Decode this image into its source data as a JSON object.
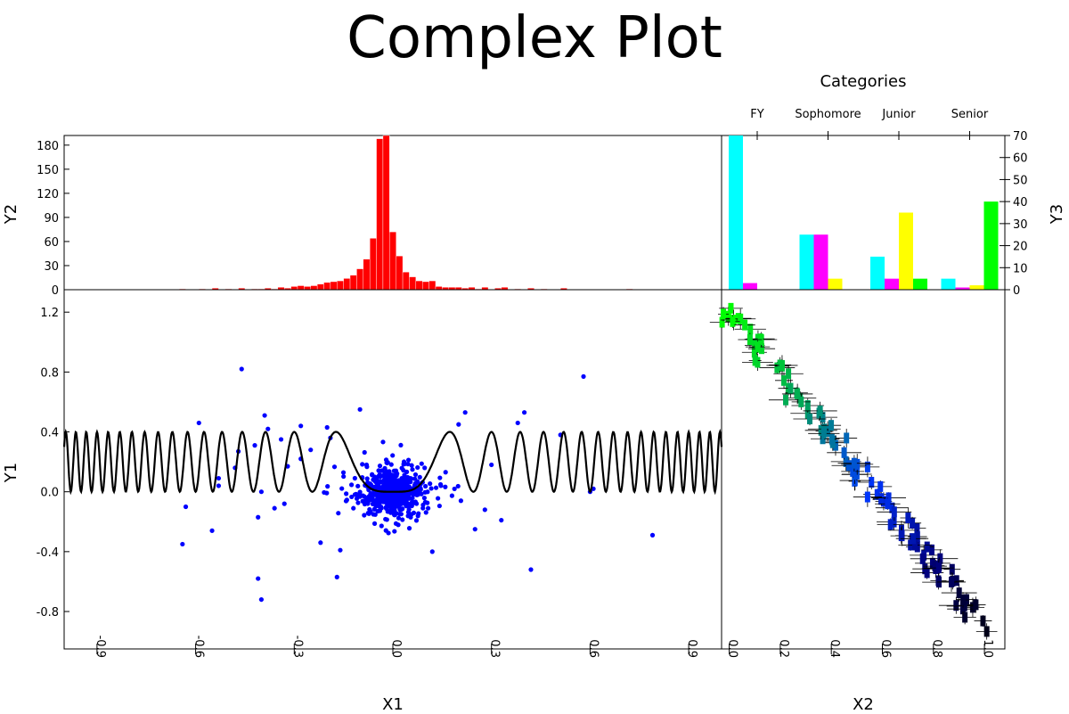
{
  "title": "Complex Plot",
  "chart_data": [
    {
      "id": "histogram",
      "type": "bar",
      "xlabel": "",
      "ylabel": "Y2",
      "ylim": [
        0,
        192
      ],
      "yticks": [
        "0",
        "30",
        "60",
        "90",
        "120",
        "150",
        "180"
      ],
      "bar_color": "#ff0000",
      "bin_width": 0.02,
      "x": [
        -0.9,
        -0.88,
        -0.86,
        -0.84,
        -0.82,
        -0.8,
        -0.78,
        -0.76,
        -0.74,
        -0.72,
        -0.7,
        -0.68,
        -0.66,
        -0.64,
        -0.62,
        -0.6,
        -0.58,
        -0.56,
        -0.54,
        -0.52,
        -0.5,
        -0.48,
        -0.46,
        -0.44,
        -0.42,
        -0.4,
        -0.38,
        -0.36,
        -0.34,
        -0.32,
        -0.3,
        -0.28,
        -0.26,
        -0.24,
        -0.22,
        -0.2,
        -0.18,
        -0.16,
        -0.14,
        -0.12,
        -0.1,
        -0.08,
        -0.06,
        -0.04,
        -0.02,
        0.0,
        0.02,
        0.04,
        0.06,
        0.08,
        0.1,
        0.12,
        0.14,
        0.16,
        0.18,
        0.2,
        0.22,
        0.24,
        0.26,
        0.28,
        0.3,
        0.32,
        0.34,
        0.36,
        0.38,
        0.4,
        0.42,
        0.44,
        0.46,
        0.48,
        0.5,
        0.52,
        0.54,
        0.56,
        0.58,
        0.6,
        0.62,
        0.64,
        0.66,
        0.68,
        0.7,
        0.72,
        0.74,
        0.76,
        0.78,
        0.8,
        0.82,
        0.84,
        0.86,
        0.88,
        0.9
      ],
      "values": [
        0,
        0,
        0,
        0,
        0,
        0,
        0,
        0,
        0,
        0,
        0,
        0,
        0,
        1,
        0,
        0,
        1,
        0,
        2,
        0,
        1,
        0,
        2,
        0,
        1,
        1,
        2,
        1,
        3,
        2,
        4,
        5,
        4,
        5,
        7,
        9,
        10,
        11,
        14,
        18,
        26,
        38,
        64,
        188,
        192,
        72,
        42,
        22,
        16,
        11,
        10,
        11,
        4,
        3,
        3,
        3,
        2,
        3,
        1,
        3,
        0,
        2,
        3,
        0,
        1,
        0,
        2,
        0,
        1,
        0,
        0,
        2,
        0,
        0,
        0,
        0,
        0,
        0,
        0,
        0,
        0,
        1,
        0,
        0,
        0,
        0,
        0,
        0,
        0,
        0,
        0
      ]
    },
    {
      "id": "category-bars",
      "type": "bar",
      "title": "Categories",
      "ylabel": "Y3",
      "ylim": [
        0,
        70
      ],
      "yticks": [
        "0",
        "10",
        "20",
        "30",
        "40",
        "50",
        "60",
        "70"
      ],
      "categories": [
        "FY",
        "Sophomore",
        "Junior",
        "Senior"
      ],
      "series": [
        {
          "color": "#00ffff",
          "values": [
            70,
            25,
            15,
            5
          ]
        },
        {
          "color": "#ff00ff",
          "values": [
            3,
            25,
            5,
            1
          ]
        },
        {
          "color": "#ffff00",
          "values": [
            0,
            5,
            35,
            2
          ]
        },
        {
          "color": "#00ff00",
          "values": [
            0,
            0,
            5,
            40
          ]
        }
      ]
    },
    {
      "id": "scatter-main",
      "type": "scatter",
      "xlabel": "X1",
      "ylabel": "Y1",
      "xlim": [
        -1.0,
        1.0
      ],
      "ylim": [
        -1.05,
        1.35
      ],
      "xticks": [
        "-0.9",
        "-0.6",
        "-0.3",
        "0.0",
        "0.3",
        "0.6",
        "0.9"
      ],
      "yticks": [
        "-0.8",
        "-0.4",
        "0.0",
        "0.4",
        "0.8",
        "1.2"
      ],
      "point_color": "#0000ff",
      "curve": {
        "color": "#000000",
        "amplitude": 0.4,
        "description": "0.2 - 0.2*cos(2*pi*x^2 / 0.06)"
      },
      "points": [
        [
          -0.64,
          -0.35
        ],
        [
          -0.63,
          -0.1
        ],
        [
          -0.59,
          0.46
        ],
        [
          -0.55,
          -0.26
        ],
        [
          -0.53,
          0.09
        ],
        [
          -0.53,
          0.04
        ],
        [
          -0.48,
          0.16
        ],
        [
          -0.47,
          0.27
        ],
        [
          -0.46,
          0.82
        ],
        [
          -0.42,
          0.31
        ],
        [
          -0.41,
          -0.17
        ],
        [
          -0.39,
          0.51
        ],
        [
          -0.38,
          0.42
        ],
        [
          -0.4,
          0.0
        ],
        [
          -0.36,
          -0.11
        ],
        [
          -0.41,
          -0.58
        ],
        [
          -0.4,
          -0.72
        ],
        [
          -0.33,
          -0.08
        ],
        [
          -0.32,
          0.17
        ],
        [
          -0.34,
          0.35
        ],
        [
          -0.28,
          0.22
        ],
        [
          -0.28,
          0.44
        ],
        [
          -0.25,
          0.28
        ],
        [
          -0.2,
          0.43
        ],
        [
          -0.19,
          0.36
        ],
        [
          -0.17,
          -0.57
        ],
        [
          -0.16,
          -0.39
        ],
        [
          -0.22,
          -0.34
        ],
        [
          -0.12,
          -0.11
        ],
        [
          -0.1,
          0.55
        ],
        [
          -0.08,
          0.18
        ],
        [
          0.2,
          0.45
        ],
        [
          0.22,
          0.53
        ],
        [
          0.4,
          0.53
        ],
        [
          0.38,
          0.46
        ],
        [
          0.42,
          -0.52
        ],
        [
          0.51,
          0.38
        ],
        [
          0.58,
          0.77
        ],
        [
          0.6,
          0.0
        ],
        [
          0.61,
          0.02
        ],
        [
          0.79,
          -0.29
        ],
        [
          0.33,
          -0.19
        ],
        [
          0.3,
          0.18
        ],
        [
          0.28,
          -0.12
        ],
        [
          0.25,
          -0.25
        ],
        [
          0.12,
          -0.4
        ]
      ]
    },
    {
      "id": "scatter-errorbars",
      "type": "scatter",
      "xlabel": "X2",
      "ylabel": "",
      "xlim": [
        -0.03,
        1.08
      ],
      "ylim": [
        -1.05,
        1.35
      ],
      "xticks": [
        "0.0",
        "0.2",
        "0.4",
        "0.6",
        "0.8",
        "1.0"
      ],
      "errorbar_color": "#000000",
      "trend": {
        "x_start": 0.0,
        "y_start": 1.2,
        "x_end": 1.0,
        "y_end": -0.9
      }
    }
  ]
}
